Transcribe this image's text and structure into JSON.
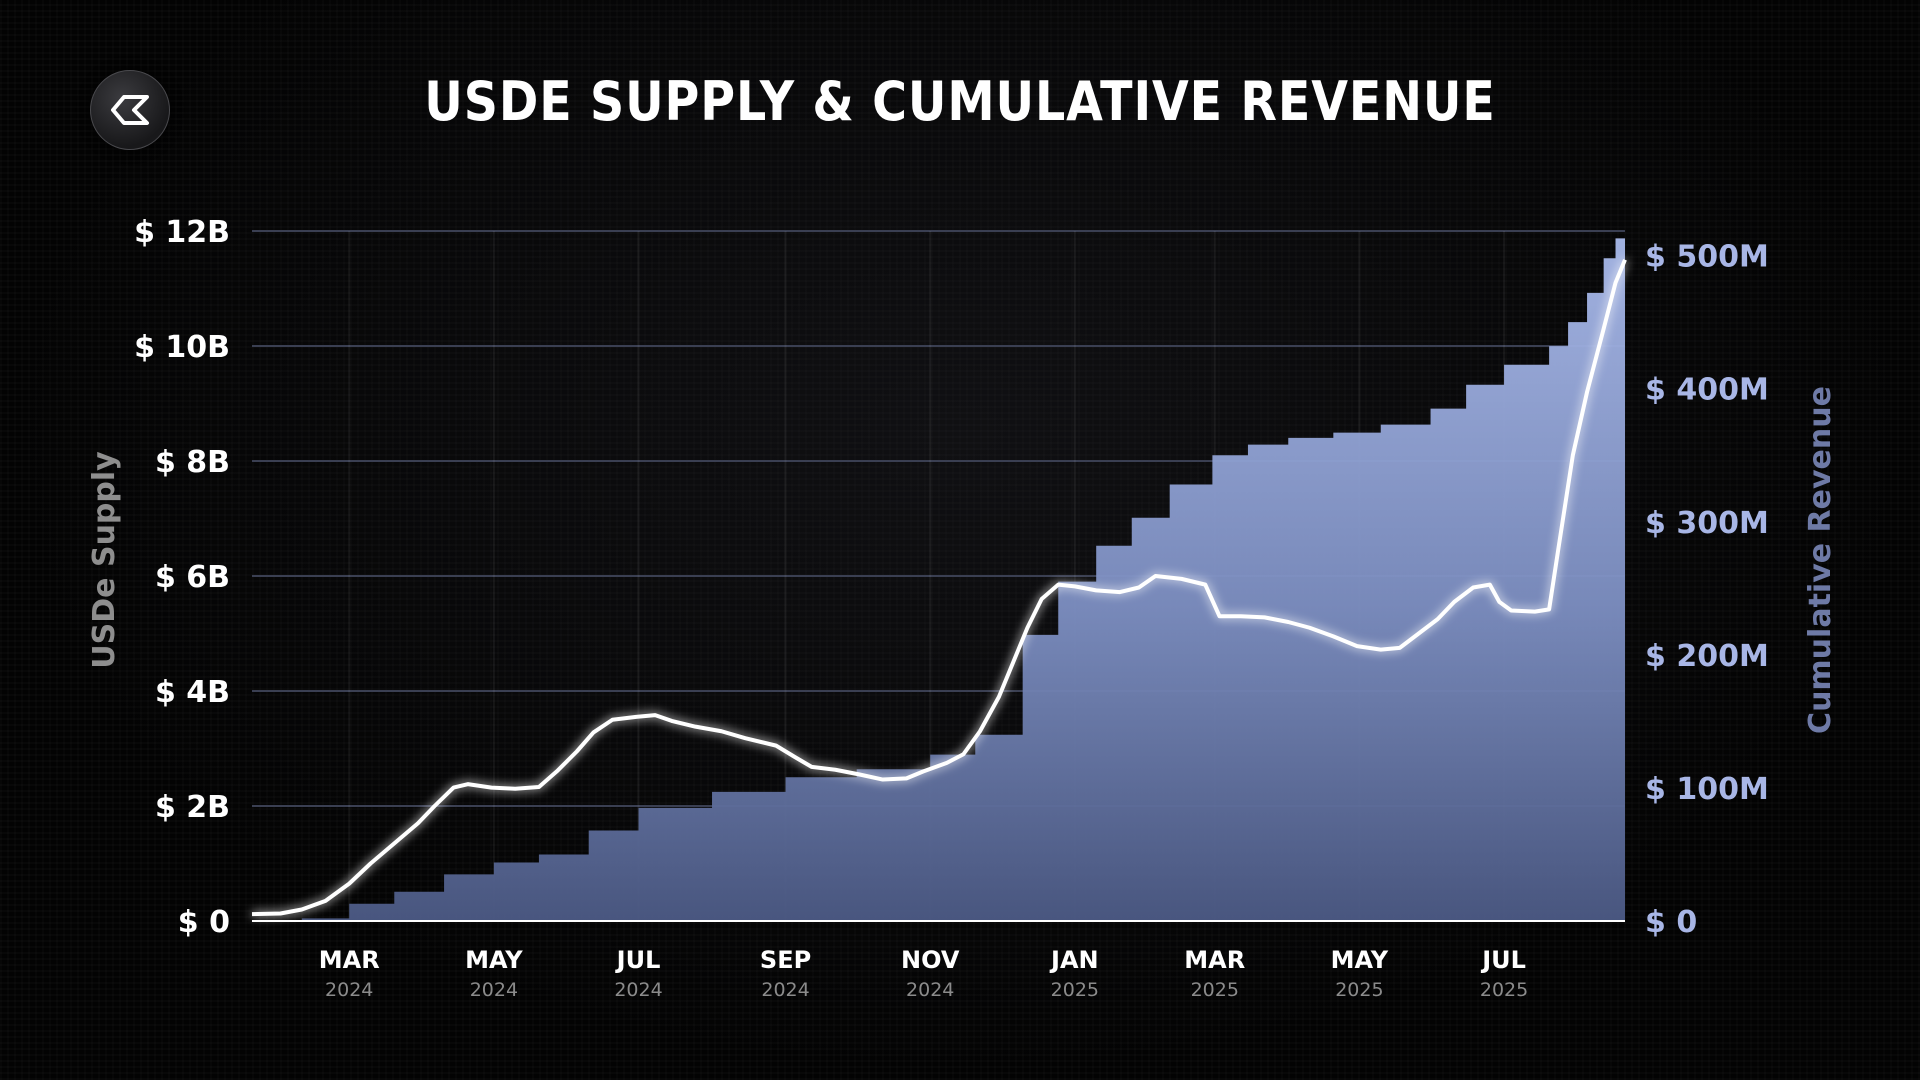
{
  "header": {
    "title": "USDE SUPPLY & CUMULATIVE REVENUE",
    "logo": "ethena-logo-icon"
  },
  "chart_data": {
    "type": "area+line",
    "title": "USDE SUPPLY & CUMULATIVE REVENUE",
    "ylabel_left": "USDe Supply",
    "ylabel_right": "Cumulative Revenue",
    "y_left_ticks": [
      "$ 0",
      "$ 2B",
      "$ 4B",
      "$ 6B",
      "$ 8B",
      "$ 10B",
      "$ 12B"
    ],
    "y_right_ticks": [
      "$ 0",
      "$ 100M",
      "$ 200M",
      "$ 300M",
      "$ 400M",
      "$ 500M"
    ],
    "y_left_range": [
      0,
      12
    ],
    "y_right_range": [
      0,
      500
    ],
    "x_range": [
      "2024-01-20",
      "2025-08-21"
    ],
    "x_ticks": [
      {
        "month": "MAR",
        "year": "2024",
        "date": "2024-03-01"
      },
      {
        "month": "MAY",
        "year": "2024",
        "date": "2024-05-01"
      },
      {
        "month": "JUL",
        "year": "2024",
        "date": "2024-07-01"
      },
      {
        "month": "SEP",
        "year": "2024",
        "date": "2024-09-01"
      },
      {
        "month": "NOV",
        "year": "2024",
        "date": "2024-11-01"
      },
      {
        "month": "JAN",
        "year": "2025",
        "date": "2025-01-01"
      },
      {
        "month": "MAR",
        "year": "2025",
        "date": "2025-03-01"
      },
      {
        "month": "MAY",
        "year": "2025",
        "date": "2025-05-01"
      },
      {
        "month": "JUL",
        "year": "2025",
        "date": "2025-07-01"
      }
    ],
    "series": [
      {
        "name": "USDe Supply",
        "axis": "left",
        "style": "line",
        "color": "#ffffff",
        "unit": "B USD",
        "points": [
          [
            "2024-01-20",
            0.12
          ],
          [
            "2024-02-01",
            0.13
          ],
          [
            "2024-02-10",
            0.2
          ],
          [
            "2024-02-20",
            0.35
          ],
          [
            "2024-03-01",
            0.65
          ],
          [
            "2024-03-10",
            1.0
          ],
          [
            "2024-03-20",
            1.35
          ],
          [
            "2024-03-30",
            1.7
          ],
          [
            "2024-04-06",
            2.0
          ],
          [
            "2024-04-14",
            2.32
          ],
          [
            "2024-04-20",
            2.38
          ],
          [
            "2024-04-30",
            2.32
          ],
          [
            "2024-05-10",
            2.3
          ],
          [
            "2024-05-20",
            2.33
          ],
          [
            "2024-05-28",
            2.62
          ],
          [
            "2024-06-05",
            2.95
          ],
          [
            "2024-06-12",
            3.28
          ],
          [
            "2024-06-20",
            3.5
          ],
          [
            "2024-06-30",
            3.55
          ],
          [
            "2024-07-08",
            3.58
          ],
          [
            "2024-07-15",
            3.48
          ],
          [
            "2024-07-25",
            3.38
          ],
          [
            "2024-08-05",
            3.3
          ],
          [
            "2024-08-15",
            3.18
          ],
          [
            "2024-08-28",
            3.05
          ],
          [
            "2024-09-05",
            2.85
          ],
          [
            "2024-09-12",
            2.68
          ],
          [
            "2024-09-22",
            2.63
          ],
          [
            "2024-10-02",
            2.55
          ],
          [
            "2024-10-12",
            2.46
          ],
          [
            "2024-10-22",
            2.48
          ],
          [
            "2024-10-29",
            2.6
          ],
          [
            "2024-11-08",
            2.75
          ],
          [
            "2024-11-15",
            2.9
          ],
          [
            "2024-11-22",
            3.3
          ],
          [
            "2024-11-30",
            3.9
          ],
          [
            "2024-12-06",
            4.5
          ],
          [
            "2024-12-12",
            5.1
          ],
          [
            "2024-12-18",
            5.6
          ],
          [
            "2024-12-25",
            5.85
          ],
          [
            "2025-01-01",
            5.82
          ],
          [
            "2025-01-10",
            5.75
          ],
          [
            "2025-01-20",
            5.72
          ],
          [
            "2025-01-28",
            5.8
          ],
          [
            "2025-02-04",
            6.0
          ],
          [
            "2025-02-15",
            5.95
          ],
          [
            "2025-02-25",
            5.85
          ],
          [
            "2025-03-03",
            5.3
          ],
          [
            "2025-03-12",
            5.3
          ],
          [
            "2025-03-22",
            5.28
          ],
          [
            "2025-04-01",
            5.2
          ],
          [
            "2025-04-10",
            5.1
          ],
          [
            "2025-04-20",
            4.95
          ],
          [
            "2025-04-30",
            4.78
          ],
          [
            "2025-05-10",
            4.72
          ],
          [
            "2025-05-18",
            4.75
          ],
          [
            "2025-05-26",
            5.0
          ],
          [
            "2025-06-03",
            5.25
          ],
          [
            "2025-06-10",
            5.55
          ],
          [
            "2025-06-18",
            5.8
          ],
          [
            "2025-06-25",
            5.85
          ],
          [
            "2025-06-29",
            5.55
          ],
          [
            "2025-07-04",
            5.4
          ],
          [
            "2025-07-14",
            5.38
          ],
          [
            "2025-07-20",
            5.42
          ],
          [
            "2025-07-24",
            6.5
          ],
          [
            "2025-07-30",
            8.1
          ],
          [
            "2025-08-05",
            9.2
          ],
          [
            "2025-08-12",
            10.3
          ],
          [
            "2025-08-17",
            11.1
          ],
          [
            "2025-08-21",
            11.5
          ]
        ]
      },
      {
        "name": "Cumulative Revenue",
        "axis": "right",
        "style": "area",
        "color": "#8fa3d6",
        "unit": "M USD",
        "points": [
          [
            "2024-01-20",
            0
          ],
          [
            "2024-02-10",
            2
          ],
          [
            "2024-03-01",
            13
          ],
          [
            "2024-03-20",
            22
          ],
          [
            "2024-04-10",
            35
          ],
          [
            "2024-05-01",
            44
          ],
          [
            "2024-05-20",
            50
          ],
          [
            "2024-06-10",
            68
          ],
          [
            "2024-07-01",
            85
          ],
          [
            "2024-08-01",
            97
          ],
          [
            "2024-09-01",
            108
          ],
          [
            "2024-10-01",
            114
          ],
          [
            "2024-11-01",
            125
          ],
          [
            "2024-11-20",
            140
          ],
          [
            "2024-12-10",
            215
          ],
          [
            "2024-12-25",
            255
          ],
          [
            "2025-01-10",
            282
          ],
          [
            "2025-01-25",
            303
          ],
          [
            "2025-02-10",
            328
          ],
          [
            "2025-02-28",
            350
          ],
          [
            "2025-03-15",
            358
          ],
          [
            "2025-04-01",
            363
          ],
          [
            "2025-04-20",
            367
          ],
          [
            "2025-05-10",
            373
          ],
          [
            "2025-05-31",
            385
          ],
          [
            "2025-06-15",
            403
          ],
          [
            "2025-07-01",
            418
          ],
          [
            "2025-07-20",
            432
          ],
          [
            "2025-07-28",
            450
          ],
          [
            "2025-08-05",
            472
          ],
          [
            "2025-08-12",
            498
          ],
          [
            "2025-08-17",
            513
          ],
          [
            "2025-08-21",
            518
          ]
        ]
      }
    ],
    "grid": "horizontal",
    "legend": "none"
  }
}
